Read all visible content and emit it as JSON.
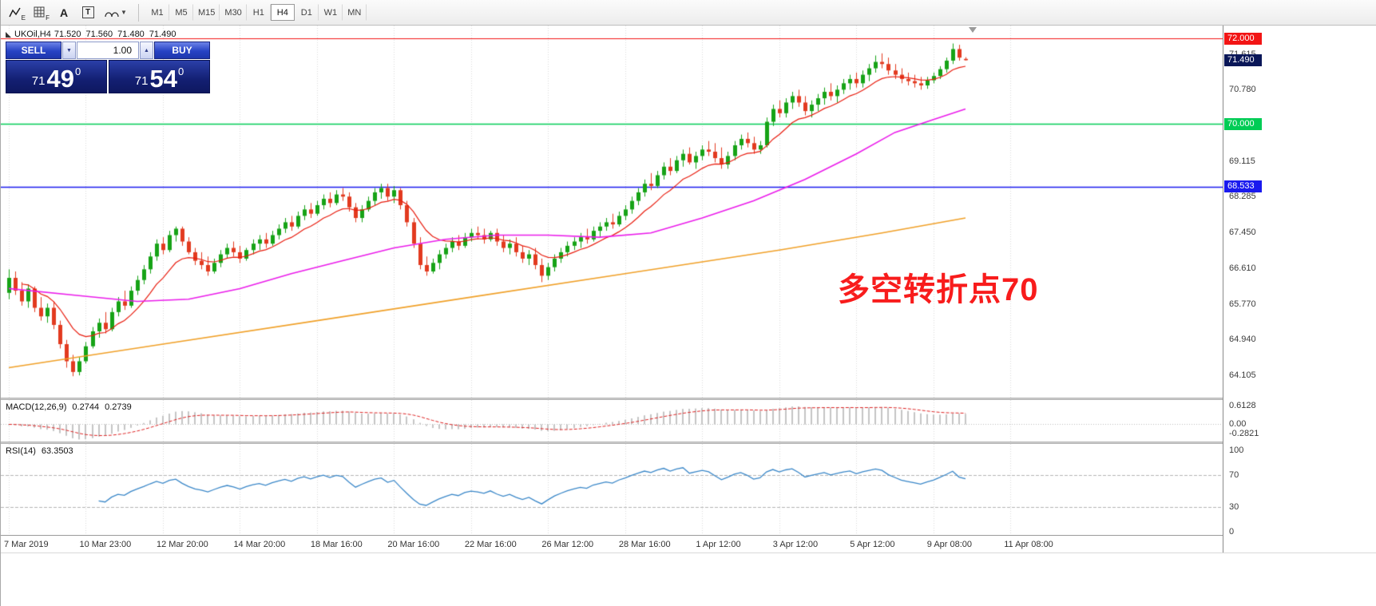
{
  "toolbar": {
    "icon_labels": {
      "e": "E",
      "f": "F",
      "a": "A",
      "t": "T"
    },
    "dropdown_glyph": "▼",
    "timeframes": {
      "items": [
        "M1",
        "M5",
        "M15",
        "M30",
        "H1",
        "H4",
        "D1",
        "W1",
        "MN"
      ],
      "active": "H4"
    }
  },
  "symbol_header": {
    "symbol": "UKOil,H4",
    "open": "71.520",
    "high": "71.560",
    "low": "71.480",
    "close": "71.490"
  },
  "trade_panel": {
    "sell_label": "SELL",
    "buy_label": "BUY",
    "volume": "1.00",
    "spinner_down": "▼",
    "spinner_up": "▲",
    "bid": {
      "prefix": "71",
      "big": "49",
      "sup": "0"
    },
    "ask": {
      "prefix": "71",
      "big": "54",
      "sup": "0"
    }
  },
  "annotation": {
    "text": "多空转折点70",
    "color": "#f81c1c"
  },
  "chart_data": {
    "type": "candlestick",
    "symbol": "UKOil",
    "timeframe": "H4",
    "price_range": {
      "min": 63.6,
      "max": 72.3
    },
    "colors": {
      "up": "#16a316",
      "down": "#e23a1f",
      "grid": "#d9d9d9"
    },
    "y_axis_labels": [
      {
        "text": "71.615",
        "price": 71.615
      },
      {
        "text": "70.780",
        "price": 70.78
      },
      {
        "text": "69.115",
        "price": 69.115
      },
      {
        "text": "68.285",
        "price": 68.285
      },
      {
        "text": "67.450",
        "price": 67.45
      },
      {
        "text": "66.610",
        "price": 66.61
      },
      {
        "text": "65.770",
        "price": 65.77
      },
      {
        "text": "64.940",
        "price": 64.94
      },
      {
        "text": "64.105",
        "price": 64.105
      }
    ],
    "price_tags": [
      {
        "name": "resistance-72000",
        "text": "72.000",
        "price": 72.0,
        "color": "#f21515",
        "line": true,
        "line_width": 1.2
      },
      {
        "name": "current-price",
        "text": "71.490",
        "price": 71.49,
        "color": "#0a1758",
        "line": false,
        "line_width": 0
      },
      {
        "name": "support-70000",
        "text": "70.000",
        "price": 70.0,
        "color": "#00cc55",
        "line": true,
        "line_width": 1.6
      },
      {
        "name": "level-68533",
        "text": "68.533",
        "price": 68.533,
        "color": "#1a1aee",
        "line": true,
        "line_width": 1.6
      }
    ],
    "time_labels": [
      "7 Mar 2019",
      "10 Mar 23:00",
      "12 Mar 20:00",
      "14 Mar 20:00",
      "18 Mar 16:00",
      "20 Mar 16:00",
      "22 Mar 16:00",
      "26 Mar 12:00",
      "28 Mar 16:00",
      "1 Apr 12:00",
      "3 Apr 12:00",
      "5 Apr 12:00",
      "9 Apr 08:00",
      "11 Apr 08:00"
    ],
    "candles_per_label": 12,
    "candles": [
      [
        66.05,
        66.6,
        65.9,
        66.4
      ],
      [
        66.4,
        66.55,
        66.0,
        66.1
      ],
      [
        66.1,
        66.3,
        65.75,
        65.85
      ],
      [
        65.85,
        66.25,
        65.7,
        66.15
      ],
      [
        66.15,
        66.2,
        65.6,
        65.7
      ],
      [
        65.7,
        65.95,
        65.4,
        65.5
      ],
      [
        65.5,
        65.8,
        65.35,
        65.7
      ],
      [
        65.7,
        65.85,
        65.2,
        65.3
      ],
      [
        65.3,
        65.4,
        64.75,
        64.85
      ],
      [
        64.85,
        64.95,
        64.3,
        64.45
      ],
      [
        64.45,
        64.6,
        64.1,
        64.2
      ],
      [
        64.2,
        64.55,
        64.12,
        64.45
      ],
      [
        64.45,
        64.9,
        64.4,
        64.8
      ],
      [
        64.8,
        65.25,
        64.75,
        65.15
      ],
      [
        65.15,
        65.45,
        65.0,
        65.35
      ],
      [
        65.35,
        65.6,
        65.1,
        65.2
      ],
      [
        65.2,
        65.7,
        65.15,
        65.6
      ],
      [
        65.6,
        65.95,
        65.5,
        65.85
      ],
      [
        65.85,
        66.1,
        65.65,
        65.75
      ],
      [
        65.75,
        66.2,
        65.7,
        66.1
      ],
      [
        66.1,
        66.45,
        66.0,
        66.35
      ],
      [
        66.35,
        66.7,
        66.25,
        66.6
      ],
      [
        66.6,
        67.0,
        66.5,
        66.9
      ],
      [
        66.9,
        67.3,
        66.8,
        67.2
      ],
      [
        67.2,
        67.35,
        66.95,
        67.05
      ],
      [
        67.05,
        67.5,
        67.0,
        67.4
      ],
      [
        67.4,
        67.6,
        67.25,
        67.55
      ],
      [
        67.55,
        67.6,
        67.15,
        67.25
      ],
      [
        67.25,
        67.35,
        66.95,
        67.0
      ],
      [
        67.0,
        67.1,
        66.7,
        66.8
      ],
      [
        66.8,
        67.0,
        66.6,
        66.7
      ],
      [
        66.7,
        66.9,
        66.45,
        66.55
      ],
      [
        66.55,
        66.85,
        66.5,
        66.75
      ],
      [
        66.75,
        67.05,
        66.65,
        66.95
      ],
      [
        66.95,
        67.2,
        66.85,
        67.1
      ],
      [
        67.1,
        67.25,
        66.9,
        67.0
      ],
      [
        67.0,
        67.15,
        66.75,
        66.85
      ],
      [
        66.85,
        67.1,
        66.8,
        67.05
      ],
      [
        67.05,
        67.3,
        66.95,
        67.2
      ],
      [
        67.2,
        67.4,
        67.05,
        67.3
      ],
      [
        67.3,
        67.45,
        67.1,
        67.2
      ],
      [
        67.2,
        67.5,
        67.15,
        67.4
      ],
      [
        67.4,
        67.65,
        67.3,
        67.55
      ],
      [
        67.55,
        67.8,
        67.45,
        67.7
      ],
      [
        67.7,
        67.85,
        67.5,
        67.6
      ],
      [
        67.6,
        67.95,
        67.55,
        67.85
      ],
      [
        67.85,
        68.1,
        67.75,
        68.0
      ],
      [
        68.0,
        68.15,
        67.8,
        67.9
      ],
      [
        67.9,
        68.2,
        67.85,
        68.1
      ],
      [
        68.1,
        68.35,
        68.0,
        68.25
      ],
      [
        68.25,
        68.4,
        68.05,
        68.15
      ],
      [
        68.15,
        68.45,
        68.1,
        68.35
      ],
      [
        68.35,
        68.5,
        68.2,
        68.3
      ],
      [
        68.3,
        68.4,
        67.95,
        68.05
      ],
      [
        68.05,
        68.15,
        67.7,
        67.8
      ],
      [
        67.8,
        68.1,
        67.7,
        68.0
      ],
      [
        68.0,
        68.3,
        67.95,
        68.2
      ],
      [
        68.2,
        68.5,
        68.1,
        68.4
      ],
      [
        68.4,
        68.6,
        68.25,
        68.5
      ],
      [
        68.5,
        68.6,
        68.2,
        68.3
      ],
      [
        68.3,
        68.55,
        68.15,
        68.45
      ],
      [
        68.45,
        68.5,
        68.0,
        68.1
      ],
      [
        68.1,
        68.2,
        67.6,
        67.7
      ],
      [
        67.7,
        67.8,
        67.1,
        67.2
      ],
      [
        67.2,
        67.35,
        66.6,
        66.7
      ],
      [
        66.7,
        66.9,
        66.45,
        66.55
      ],
      [
        66.55,
        66.85,
        66.5,
        66.75
      ],
      [
        66.75,
        67.05,
        66.6,
        66.95
      ],
      [
        66.95,
        67.2,
        66.85,
        67.1
      ],
      [
        67.1,
        67.35,
        67.0,
        67.25
      ],
      [
        67.25,
        67.4,
        67.05,
        67.15
      ],
      [
        67.15,
        67.45,
        67.1,
        67.35
      ],
      [
        67.35,
        67.55,
        67.25,
        67.45
      ],
      [
        67.45,
        67.6,
        67.3,
        67.4
      ],
      [
        67.4,
        67.55,
        67.2,
        67.3
      ],
      [
        67.3,
        67.5,
        67.25,
        67.45
      ],
      [
        67.45,
        67.55,
        67.15,
        67.25
      ],
      [
        67.25,
        67.4,
        67.0,
        67.1
      ],
      [
        67.1,
        67.3,
        66.95,
        67.2
      ],
      [
        67.2,
        67.35,
        66.9,
        67.0
      ],
      [
        67.0,
        67.15,
        66.75,
        66.85
      ],
      [
        66.85,
        67.05,
        66.7,
        66.95
      ],
      [
        66.95,
        67.1,
        66.6,
        66.7
      ],
      [
        66.7,
        66.85,
        66.3,
        66.45
      ],
      [
        66.45,
        66.75,
        66.35,
        66.65
      ],
      [
        66.65,
        66.95,
        66.55,
        66.85
      ],
      [
        66.85,
        67.1,
        66.75,
        67.0
      ],
      [
        67.0,
        67.25,
        66.9,
        67.15
      ],
      [
        67.15,
        67.35,
        67.05,
        67.25
      ],
      [
        67.25,
        67.45,
        67.1,
        67.35
      ],
      [
        67.35,
        67.55,
        67.2,
        67.3
      ],
      [
        67.3,
        67.6,
        67.25,
        67.5
      ],
      [
        67.5,
        67.7,
        67.35,
        67.6
      ],
      [
        67.6,
        67.8,
        67.5,
        67.7
      ],
      [
        67.7,
        67.9,
        67.55,
        67.65
      ],
      [
        67.65,
        67.95,
        67.6,
        67.85
      ],
      [
        67.85,
        68.1,
        67.75,
        68.0
      ],
      [
        68.0,
        68.3,
        67.9,
        68.2
      ],
      [
        68.2,
        68.5,
        68.1,
        68.4
      ],
      [
        68.4,
        68.7,
        68.3,
        68.6
      ],
      [
        68.6,
        68.85,
        68.45,
        68.55
      ],
      [
        68.55,
        68.9,
        68.5,
        68.8
      ],
      [
        68.8,
        69.1,
        68.7,
        69.0
      ],
      [
        69.0,
        69.2,
        68.8,
        68.9
      ],
      [
        68.9,
        69.25,
        68.85,
        69.15
      ],
      [
        69.15,
        69.4,
        69.0,
        69.3
      ],
      [
        69.3,
        69.45,
        69.05,
        69.1
      ],
      [
        69.1,
        69.35,
        68.95,
        69.25
      ],
      [
        69.25,
        69.5,
        69.15,
        69.4
      ],
      [
        69.4,
        69.6,
        69.25,
        69.35
      ],
      [
        69.35,
        69.55,
        69.1,
        69.2
      ],
      [
        69.2,
        69.45,
        68.95,
        69.05
      ],
      [
        69.05,
        69.35,
        68.95,
        69.25
      ],
      [
        69.25,
        69.6,
        69.15,
        69.5
      ],
      [
        69.5,
        69.75,
        69.4,
        69.65
      ],
      [
        69.65,
        69.8,
        69.45,
        69.55
      ],
      [
        69.55,
        69.7,
        69.3,
        69.4
      ],
      [
        69.4,
        69.6,
        69.3,
        69.5
      ],
      [
        69.5,
        70.15,
        69.45,
        70.05
      ],
      [
        70.05,
        70.45,
        69.95,
        70.35
      ],
      [
        70.35,
        70.55,
        70.15,
        70.25
      ],
      [
        70.25,
        70.6,
        70.15,
        70.5
      ],
      [
        70.5,
        70.75,
        70.35,
        70.65
      ],
      [
        70.65,
        70.8,
        70.4,
        70.5
      ],
      [
        70.5,
        70.65,
        70.2,
        70.3
      ],
      [
        70.3,
        70.55,
        70.15,
        70.45
      ],
      [
        70.45,
        70.7,
        70.3,
        70.6
      ],
      [
        70.6,
        70.85,
        70.45,
        70.75
      ],
      [
        70.75,
        70.95,
        70.55,
        70.65
      ],
      [
        70.65,
        70.9,
        70.5,
        70.8
      ],
      [
        70.8,
        71.05,
        70.7,
        70.95
      ],
      [
        70.95,
        71.15,
        70.8,
        71.05
      ],
      [
        71.05,
        71.2,
        70.85,
        70.95
      ],
      [
        70.95,
        71.25,
        70.85,
        71.15
      ],
      [
        71.15,
        71.4,
        71.0,
        71.3
      ],
      [
        71.3,
        71.6,
        71.2,
        71.45
      ],
      [
        71.45,
        71.65,
        71.3,
        71.4
      ],
      [
        71.4,
        71.55,
        71.15,
        71.25
      ],
      [
        71.25,
        71.4,
        71.05,
        71.15
      ],
      [
        71.15,
        71.3,
        70.95,
        71.05
      ],
      [
        71.05,
        71.2,
        70.9,
        71.0
      ],
      [
        71.0,
        71.15,
        70.85,
        70.95
      ],
      [
        70.95,
        71.1,
        70.8,
        70.9
      ],
      [
        70.9,
        71.1,
        70.82,
        71.02
      ],
      [
        71.02,
        71.2,
        70.95,
        71.12
      ],
      [
        71.12,
        71.35,
        71.05,
        71.28
      ],
      [
        71.28,
        71.55,
        71.2,
        71.48
      ],
      [
        71.48,
        71.88,
        71.4,
        71.75
      ],
      [
        71.75,
        71.85,
        71.48,
        71.55
      ],
      [
        71.52,
        71.56,
        71.48,
        71.49
      ]
    ],
    "moving_averages": {
      "fast": {
        "type": "ema",
        "period": 10,
        "color": "#e81c0e"
      },
      "mid": {
        "color": "#ea1cea",
        "points": [
          [
            0,
            66.15
          ],
          [
            10,
            66.0
          ],
          [
            20,
            65.85
          ],
          [
            28,
            65.9
          ],
          [
            36,
            66.15
          ],
          [
            44,
            66.5
          ],
          [
            52,
            66.8
          ],
          [
            60,
            67.1
          ],
          [
            68,
            67.3
          ],
          [
            76,
            67.4
          ],
          [
            84,
            67.4
          ],
          [
            92,
            67.35
          ],
          [
            100,
            67.45
          ],
          [
            108,
            67.8
          ],
          [
            116,
            68.2
          ],
          [
            124,
            68.7
          ],
          [
            132,
            69.3
          ],
          [
            138,
            69.8
          ],
          [
            144,
            70.1
          ],
          [
            149,
            70.35
          ]
        ]
      },
      "slow": {
        "color": "#f0a028",
        "points": [
          [
            0,
            64.3
          ],
          [
            24,
            64.85
          ],
          [
            48,
            65.4
          ],
          [
            72,
            65.95
          ],
          [
            96,
            66.5
          ],
          [
            120,
            67.05
          ],
          [
            136,
            67.45
          ],
          [
            149,
            67.8
          ]
        ]
      }
    },
    "macd": {
      "title": "MACD(12,26,9)",
      "value_main": "0.2744",
      "value_signal": "0.2739",
      "fast": 12,
      "slow": 26,
      "signal": 9,
      "axis": [
        {
          "text": "0.6128",
          "value": 0.6128
        },
        {
          "text": "0.00",
          "value": 0
        },
        {
          "text": "-0.2821",
          "value": -0.2821
        }
      ],
      "range": {
        "min": -0.55,
        "max": 0.78
      },
      "histogram_color": "#c4c4c4",
      "signal_color": "#dd2222"
    },
    "rsi": {
      "title": "RSI(14)",
      "value": "63.3503",
      "period": 14,
      "axis": [
        {
          "text": "100",
          "value": 100
        },
        {
          "text": "70",
          "value": 70
        },
        {
          "text": "30",
          "value": 30
        },
        {
          "text": "0",
          "value": 0
        }
      ],
      "levels": [
        70,
        30
      ],
      "range": {
        "min": -4,
        "max": 108
      },
      "color": "#3a87c8"
    }
  }
}
